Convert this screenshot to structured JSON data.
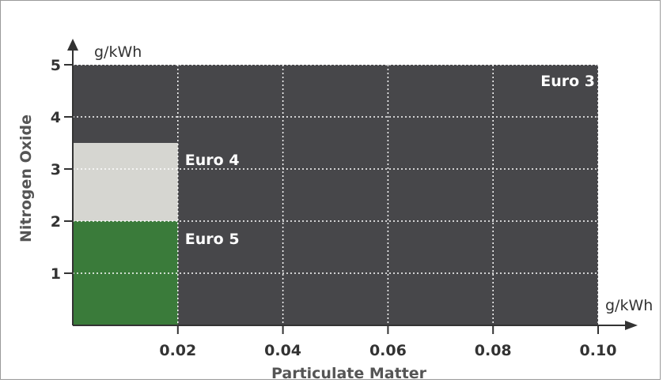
{
  "chart_data": {
    "type": "area",
    "title": "",
    "xlabel": "Particulate Matter",
    "ylabel": "Nitrogen Oxide",
    "x_unit": "g/kWh",
    "y_unit": "g/kWh",
    "xlim": [
      0,
      0.1
    ],
    "ylim": [
      0,
      5
    ],
    "x_ticks": [
      "0.02",
      "0.04",
      "0.06",
      "0.08",
      "0.10"
    ],
    "x_tick_values": [
      0.02,
      0.04,
      0.06,
      0.08,
      0.1
    ],
    "y_ticks": [
      "1",
      "2",
      "3",
      "4",
      "5"
    ],
    "y_tick_values": [
      1,
      2,
      3,
      4,
      5
    ],
    "grid": true,
    "regions": [
      {
        "name": "Euro 3",
        "pm_max": 0.1,
        "nox_max": 5.0,
        "color": "#47474a"
      },
      {
        "name": "Euro 4",
        "pm_max": 0.02,
        "nox_max": 3.5,
        "color": "#d6d6d1"
      },
      {
        "name": "Euro 5",
        "pm_max": 0.02,
        "nox_max": 2.0,
        "color": "#3a7b3a"
      }
    ]
  },
  "colors": {
    "grid": "#ffffff",
    "axis": "#333333",
    "text": "#333333",
    "axis_title": "#555555"
  }
}
